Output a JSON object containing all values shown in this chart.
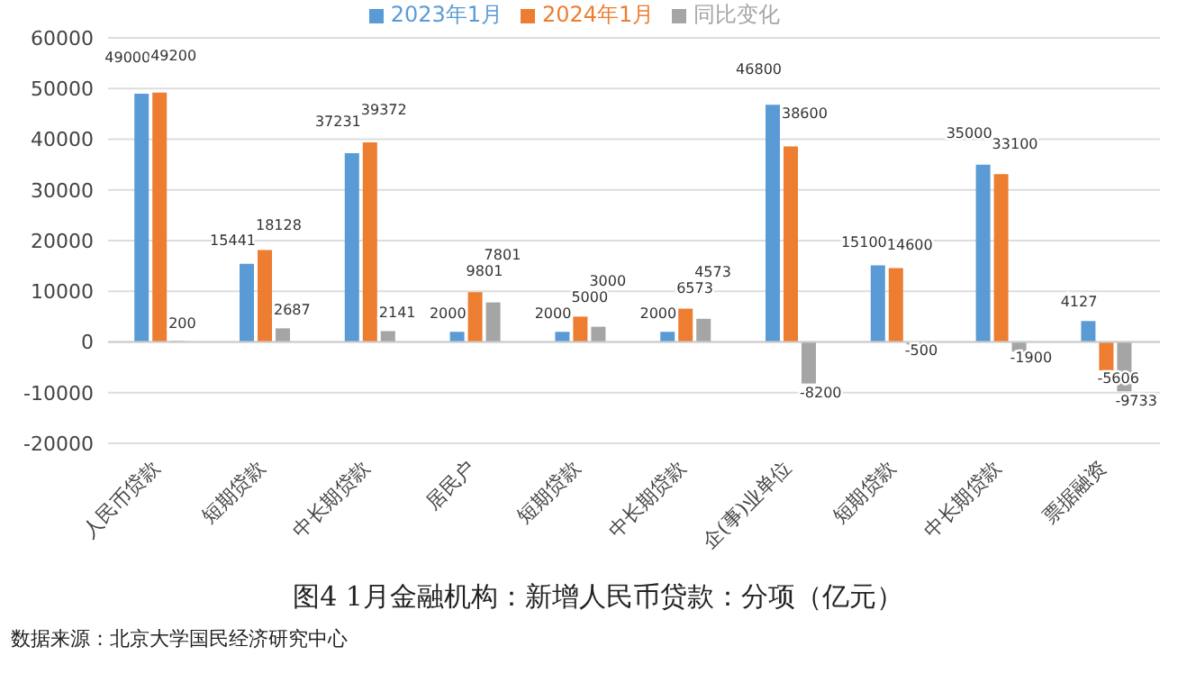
{
  "chart_data": {
    "type": "bar",
    "title": "图4 1月金融机构：新增人民币贷款：分项（亿元）",
    "annotations": [
      "数据来源：北京大学国民经济研究中心"
    ],
    "categories": [
      "人民币贷款",
      "短期贷款",
      "中长期贷款",
      "居民户",
      "短期贷款",
      "中长期贷款",
      "企(事)业单位",
      "短期贷款",
      "中长期贷款",
      "票据融资"
    ],
    "series": [
      {
        "name": "2023年1月",
        "color": "#5b9bd5",
        "values": [
          49000,
          15441,
          37231,
          2000,
          2000,
          2000,
          46800,
          15100,
          35000,
          4127
        ]
      },
      {
        "name": "2024年1月",
        "color": "#ed7d31",
        "values": [
          49200,
          18128,
          39372,
          9801,
          5000,
          6573,
          38600,
          14600,
          33100,
          -5606
        ]
      },
      {
        "name": "同比变化",
        "color": "#a5a5a5",
        "values": [
          200,
          2687,
          2141,
          7801,
          3000,
          4573,
          -8200,
          -500,
          -1900,
          -9733
        ]
      }
    ],
    "ylim": [
      -20000,
      60000
    ],
    "yticks": [
      -20000,
      -10000,
      0,
      10000,
      20000,
      30000,
      40000,
      50000,
      60000
    ],
    "grid": "y",
    "legend": "top",
    "data_labels": true
  }
}
